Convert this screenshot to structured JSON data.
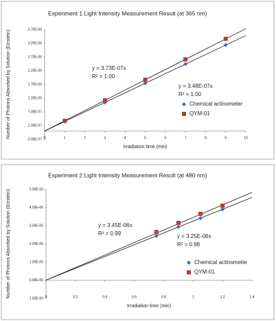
{
  "chart_data": [
    {
      "type": "scatter",
      "title": "Experiment 1   Light Intensity Measurement Result (at 365 nm)",
      "x_label": "Irradiation time (min)",
      "y_label": "Number of Photons Absorbed by Solution (Einstein)",
      "x": [
        1,
        3,
        5,
        7,
        9
      ],
      "series": [
        {
          "name": "Chemical actinometer",
          "color": "#3a6db5",
          "marker": "diamond",
          "values": [
            3.48e-07,
            1.04e-06,
            1.74e-06,
            2.44e-06,
            3.13e-06
          ],
          "trendline": {
            "slope": 3.48e-07,
            "label": "y = 3.48E-07x",
            "r2_label": "R² = 1.00"
          }
        },
        {
          "name": "QYM-01",
          "color": "#b23a3a",
          "marker": "square",
          "values": [
            3.73e-07,
            1.12e-06,
            1.87e-06,
            2.61e-06,
            3.36e-06
          ],
          "trendline": {
            "slope": 3.73e-07,
            "label": "y = 3.73E-07x",
            "r2_label": "R² = 1.00"
          }
        }
      ],
      "xlim": [
        0,
        10
      ],
      "xticks": [
        0,
        1,
        2,
        3,
        4,
        5,
        6,
        7,
        8,
        9,
        10
      ],
      "ylim": [
        -3e-07,
        3.7e-06
      ],
      "yticks": [
        {
          "value": -3e-07,
          "label": "-3.00E-07"
        },
        {
          "value": 2e-07,
          "label": "2.00E-07"
        },
        {
          "value": 7e-07,
          "label": "7.00E-07"
        },
        {
          "value": 1.2e-06,
          "label": "1.20E-06"
        },
        {
          "value": 1.7e-06,
          "label": "1.70E-06"
        },
        {
          "value": 2.2e-06,
          "label": "2.20E-06"
        },
        {
          "value": 2.7e-06,
          "label": "2.70E-06"
        },
        {
          "value": 3.2e-06,
          "label": "3.20E-06"
        },
        {
          "value": 3.7e-06,
          "label": "3.70E-06"
        }
      ],
      "grid": false,
      "legend": "right"
    },
    {
      "type": "scatter",
      "title": "Experiment 2   Light Intensity Measurement Result (at 480 nm)",
      "x_label": "Irradiation time (min)",
      "y_label": "Number of Photons Absorbed by Solution (Einstein)",
      "x": [
        0.75,
        0.9,
        1.05,
        1.2
      ],
      "series": [
        {
          "name": "Chemical actinometer",
          "color": "#3a6db5",
          "marker": "diamond",
          "values": [
            2.44e-06,
            2.93e-06,
            3.41e-06,
            3.9e-06
          ],
          "trendline": {
            "slope": 3.25e-06,
            "label": "y = 3.25E-06x",
            "r2_label": "R² = 0.98"
          }
        },
        {
          "name": "QYM-01",
          "color": "#b23a3a",
          "marker": "square",
          "values": [
            2.65e-06,
            3.15e-06,
            3.65e-06,
            4.1e-06
          ],
          "trendline": {
            "slope": 3.45e-06,
            "label": "y = 3.45E-06x",
            "r2_label": "R² = 0.99"
          }
        }
      ],
      "xlim": [
        0,
        1.4
      ],
      "xticks": [
        0,
        0.2,
        0.4,
        0.6,
        0.8,
        1,
        1.2,
        1.4
      ],
      "ylim": [
        -1e-06,
        5e-06
      ],
      "yticks": [
        {
          "value": -1e-06,
          "label": "-1.00E-06"
        },
        {
          "value": 0,
          "label": "0.00E-06"
        },
        {
          "value": 1e-06,
          "label": "1.00E-06"
        },
        {
          "value": 2e-06,
          "label": "2.00E-06"
        },
        {
          "value": 3e-06,
          "label": "3.00E-06"
        },
        {
          "value": 4e-06,
          "label": "4.00E-06"
        },
        {
          "value": 5e-06,
          "label": "5.00E-06"
        }
      ],
      "grid": false,
      "legend": "right"
    }
  ]
}
